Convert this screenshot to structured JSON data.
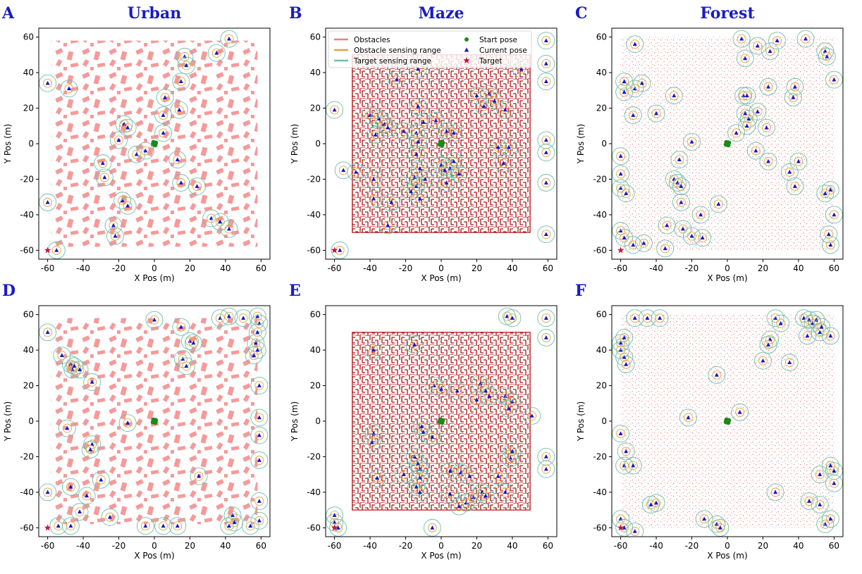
{
  "figure": {
    "legend": {
      "placement": "top",
      "entries": [
        {
          "label": "Obstacles",
          "kind": "line",
          "color": "#f08080"
        },
        {
          "label": "Obstacle sensing range",
          "kind": "line",
          "color": "#d9a545"
        },
        {
          "label": "Target sensing range",
          "kind": "line",
          "color": "#6fbfae"
        },
        {
          "label": "Start pose",
          "kind": "dot",
          "color": "#1a8a1a"
        },
        {
          "label": "Current pose",
          "kind": "triangle",
          "color": "#1515c8"
        },
        {
          "label": "Target",
          "kind": "star",
          "color": "#c8143c"
        }
      ]
    },
    "colors": {
      "obstacle_urban": "#f59a9a",
      "obstacle_maze": "#b01010",
      "obstacle_forest": "#f08a8a",
      "target_ring": "#6fbfae",
      "obstacle_ring": "#d9a545",
      "agent": "#1515c8",
      "start": "#1a8a1a",
      "target": "#c8143c",
      "title_color": "#1a1ac8"
    }
  },
  "chart_data": [
    {
      "letter": "A",
      "title": "Urban",
      "type": "scatter",
      "environment": "urban",
      "xlabel": "X Pos (m)",
      "ylabel": "Y Pos (m)",
      "xlim": [
        -65,
        65
      ],
      "ylim": [
        -65,
        65
      ],
      "xticks": [
        -60,
        -40,
        -20,
        0,
        20,
        40,
        60
      ],
      "yticks": [
        -60,
        -40,
        -20,
        0,
        20,
        40,
        60
      ],
      "target": [
        -60,
        -60
      ],
      "start": [
        0,
        0
      ],
      "agents": [
        [
          -60,
          34
        ],
        [
          -48,
          31
        ],
        [
          -60,
          -33
        ],
        [
          -55,
          -60
        ],
        [
          42,
          59
        ],
        [
          17,
          49
        ],
        [
          18,
          44
        ],
        [
          35,
          51
        ],
        [
          15,
          35
        ],
        [
          6,
          26
        ],
        [
          5,
          16
        ],
        [
          14,
          19
        ],
        [
          5,
          6
        ],
        [
          -17,
          11
        ],
        [
          -15,
          9
        ],
        [
          -20,
          2
        ],
        [
          -10,
          -6
        ],
        [
          -5,
          -4
        ],
        [
          13,
          -9
        ],
        [
          -29,
          -11
        ],
        [
          -28,
          -19
        ],
        [
          -18,
          -32
        ],
        [
          -15,
          -35
        ],
        [
          15,
          -22
        ],
        [
          24,
          -24
        ],
        [
          -23,
          -46
        ],
        [
          -22,
          -52
        ],
        [
          32,
          -42
        ],
        [
          37,
          -44
        ],
        [
          42,
          -48
        ]
      ]
    },
    {
      "letter": "B",
      "title": "Maze",
      "type": "scatter",
      "environment": "maze",
      "xlabel": "X Pos (m)",
      "ylabel": "Y Pos (m)",
      "xlim": [
        -65,
        65
      ],
      "ylim": [
        -65,
        65
      ],
      "xticks": [
        -60,
        -40,
        -20,
        0,
        20,
        40,
        60
      ],
      "yticks": [
        -60,
        -40,
        -20,
        0,
        20,
        40,
        60
      ],
      "legend_shown": true,
      "target": [
        -60,
        -60
      ],
      "start": [
        0,
        0
      ],
      "agents": [
        [
          -60,
          19
        ],
        [
          -55,
          -15
        ],
        [
          -57,
          -60
        ],
        [
          59,
          58
        ],
        [
          59,
          45
        ],
        [
          59,
          35
        ],
        [
          59,
          2
        ],
        [
          59,
          -5
        ],
        [
          59,
          -22
        ],
        [
          59,
          -51
        ],
        [
          -40,
          16
        ],
        [
          -35,
          14
        ],
        [
          -32,
          11
        ],
        [
          -30,
          9
        ],
        [
          -37,
          5
        ],
        [
          -13,
          42
        ],
        [
          -25,
          36
        ],
        [
          -13,
          21
        ],
        [
          -21,
          7
        ],
        [
          -10,
          12
        ],
        [
          -14,
          6
        ],
        [
          -13,
          1
        ],
        [
          -14,
          -6
        ],
        [
          -3,
          13
        ],
        [
          3,
          7
        ],
        [
          7,
          6
        ],
        [
          -12,
          -14
        ],
        [
          -15,
          -19
        ],
        [
          -14,
          -24
        ],
        [
          -17,
          -27
        ],
        [
          -12,
          -31
        ],
        [
          -9,
          -20
        ],
        [
          0,
          -12
        ],
        [
          2,
          -15
        ],
        [
          5,
          -14
        ],
        [
          7,
          -10
        ],
        [
          3,
          -22
        ],
        [
          10,
          -17
        ],
        [
          -48,
          -16
        ],
        [
          -38,
          -20
        ],
        [
          -38,
          -31
        ],
        [
          -30,
          -46
        ],
        [
          -28,
          -33
        ],
        [
          20,
          27
        ],
        [
          27,
          28
        ],
        [
          24,
          21
        ],
        [
          30,
          24
        ],
        [
          36,
          19
        ],
        [
          35,
          -11
        ],
        [
          32,
          -2
        ],
        [
          38,
          -2
        ],
        [
          45,
          42
        ]
      ]
    },
    {
      "letter": "C",
      "title": "Forest",
      "type": "scatter",
      "environment": "forest",
      "xlabel": "X Pos (m)",
      "ylabel": "Y Pos (m)",
      "xlim": [
        -65,
        65
      ],
      "ylim": [
        -65,
        65
      ],
      "xticks": [
        -60,
        -40,
        -20,
        0,
        20,
        40,
        60
      ],
      "yticks": [
        -60,
        -40,
        -20,
        0,
        20,
        40,
        60
      ],
      "target": [
        -60,
        -60
      ],
      "start": [
        0,
        0
      ],
      "agents": [
        [
          -52,
          56
        ],
        [
          -58,
          35
        ],
        [
          -58,
          29
        ],
        [
          -52,
          31
        ],
        [
          -48,
          34
        ],
        [
          -53,
          16
        ],
        [
          -40,
          17
        ],
        [
          -30,
          27
        ],
        [
          -60,
          -7
        ],
        [
          -60,
          -17
        ],
        [
          -60,
          -25
        ],
        [
          -57,
          -28
        ],
        [
          -60,
          -49
        ],
        [
          -58,
          -53
        ],
        [
          -53,
          -57
        ],
        [
          -47,
          -56
        ],
        [
          -20,
          1
        ],
        [
          -30,
          -20
        ],
        [
          -28,
          -22
        ],
        [
          -26,
          -24
        ],
        [
          -26,
          -33
        ],
        [
          -34,
          -46
        ],
        [
          -25,
          -48
        ],
        [
          -20,
          -52
        ],
        [
          -14,
          -53
        ],
        [
          -15,
          -40
        ],
        [
          -27,
          -9
        ],
        [
          -5,
          -34
        ],
        [
          -35,
          -59
        ],
        [
          5,
          6
        ],
        [
          9,
          27
        ],
        [
          11,
          27
        ],
        [
          10,
          17
        ],
        [
          12,
          14
        ],
        [
          11,
          10
        ],
        [
          17,
          18
        ],
        [
          22,
          9
        ],
        [
          8,
          59
        ],
        [
          10,
          48
        ],
        [
          17,
          55
        ],
        [
          24,
          52
        ],
        [
          28,
          58
        ],
        [
          44,
          59
        ],
        [
          23,
          32
        ],
        [
          16,
          -4
        ],
        [
          23,
          -10
        ],
        [
          35,
          -16
        ],
        [
          38,
          -24
        ],
        [
          40,
          -10
        ],
        [
          38,
          32
        ],
        [
          37,
          26
        ],
        [
          55,
          52
        ],
        [
          56,
          49
        ],
        [
          60,
          36
        ],
        [
          58,
          -26
        ],
        [
          55,
          -28
        ],
        [
          60,
          -40
        ],
        [
          57,
          -51
        ],
        [
          58,
          -57
        ]
      ]
    },
    {
      "letter": "D",
      "type": "scatter",
      "environment": "urban",
      "xlabel": "X Pos (m)",
      "ylabel": "Y Pos (m)",
      "xlim": [
        -65,
        65
      ],
      "ylim": [
        -65,
        65
      ],
      "xticks": [
        -60,
        -40,
        -20,
        0,
        20,
        40,
        60
      ],
      "yticks": [
        -60,
        -40,
        -20,
        0,
        20,
        40,
        60
      ],
      "target": [
        -60,
        -60
      ],
      "start": [
        0,
        0
      ],
      "agents": [
        [
          -60,
          50
        ],
        [
          -52,
          37
        ],
        [
          -47,
          32
        ],
        [
          -46,
          29
        ],
        [
          -45,
          31
        ],
        [
          -42,
          29
        ],
        [
          -35,
          22
        ],
        [
          -49,
          -4
        ],
        [
          -35,
          -13
        ],
        [
          -36,
          -16
        ],
        [
          -47,
          -37
        ],
        [
          -60,
          -40
        ],
        [
          -54,
          -59
        ],
        [
          -47,
          -59
        ],
        [
          -42,
          -51
        ],
        [
          -38,
          -42
        ],
        [
          -30,
          -33
        ],
        [
          -25,
          -54
        ],
        [
          -15,
          -1
        ],
        [
          0,
          57
        ],
        [
          15,
          53
        ],
        [
          16,
          35
        ],
        [
          18,
          31
        ],
        [
          20,
          45
        ],
        [
          22,
          44
        ],
        [
          25,
          -31
        ],
        [
          13,
          -59
        ],
        [
          5,
          -59
        ],
        [
          -5,
          -59
        ],
        [
          37,
          58
        ],
        [
          42,
          59
        ],
        [
          50,
          58
        ],
        [
          58,
          59
        ],
        [
          59,
          55
        ],
        [
          58,
          50
        ],
        [
          57,
          44
        ],
        [
          58,
          40
        ],
        [
          56,
          37
        ],
        [
          59,
          20
        ],
        [
          59,
          2
        ],
        [
          59,
          -8
        ],
        [
          59,
          -22
        ],
        [
          59,
          -45
        ],
        [
          44,
          -53
        ],
        [
          45,
          -57
        ],
        [
          59,
          -56
        ],
        [
          54,
          -59
        ],
        [
          42,
          -59
        ]
      ]
    },
    {
      "letter": "E",
      "type": "scatter",
      "environment": "maze",
      "xlabel": "X Pos (m)",
      "ylabel": "Y Pos (m)",
      "xlim": [
        -65,
        65
      ],
      "ylim": [
        -65,
        65
      ],
      "xticks": [
        -60,
        -40,
        -20,
        0,
        20,
        40,
        60
      ],
      "yticks": [
        -60,
        -40,
        -20,
        0,
        20,
        40,
        60
      ],
      "target": [
        -60,
        -60
      ],
      "start": [
        0,
        0
      ],
      "agents": [
        [
          -60,
          -57
        ],
        [
          -58,
          -60
        ],
        [
          -60,
          -53
        ],
        [
          -38,
          40
        ],
        [
          -15,
          43
        ],
        [
          -4,
          20
        ],
        [
          0,
          18
        ],
        [
          9,
          17
        ],
        [
          22,
          21
        ],
        [
          25,
          17
        ],
        [
          27,
          14
        ],
        [
          20,
          12
        ],
        [
          36,
          14
        ],
        [
          40,
          11
        ],
        [
          38,
          7
        ],
        [
          51,
          3
        ],
        [
          37,
          59
        ],
        [
          40,
          58
        ],
        [
          59,
          58
        ],
        [
          59,
          47
        ],
        [
          -38,
          -7
        ],
        [
          -39,
          -12
        ],
        [
          -36,
          -32
        ],
        [
          -21,
          -30
        ],
        [
          -15,
          -20
        ],
        [
          -13,
          -24
        ],
        [
          -12,
          -27
        ],
        [
          -12,
          -32
        ],
        [
          -14,
          -37
        ],
        [
          -12,
          -40
        ],
        [
          -10,
          -6
        ],
        [
          -11,
          -3
        ],
        [
          -5,
          -9
        ],
        [
          5,
          -28
        ],
        [
          11,
          -29
        ],
        [
          16,
          -31
        ],
        [
          23,
          -40
        ],
        [
          25,
          -42
        ],
        [
          18,
          -43
        ],
        [
          14,
          -46
        ],
        [
          5,
          -41
        ],
        [
          10,
          -48
        ],
        [
          32,
          -31
        ],
        [
          36,
          -40
        ],
        [
          39,
          -21
        ],
        [
          40,
          -17
        ],
        [
          59,
          -20
        ],
        [
          59,
          -27
        ],
        [
          -5,
          -60
        ]
      ]
    },
    {
      "letter": "F",
      "type": "scatter",
      "environment": "forest",
      "xlabel": "X Pos (m)",
      "ylabel": "Y Pos (m)",
      "xlim": [
        -65,
        65
      ],
      "ylim": [
        -65,
        65
      ],
      "xticks": [
        -60,
        -40,
        -20,
        0,
        20,
        40,
        60
      ],
      "yticks": [
        -60,
        -40,
        -20,
        0,
        20,
        40,
        60
      ],
      "target": [
        -60,
        -60
      ],
      "start": [
        0,
        0
      ],
      "agents": [
        [
          -60,
          44
        ],
        [
          -58,
          47
        ],
        [
          -60,
          40
        ],
        [
          -58,
          36
        ],
        [
          -57,
          32
        ],
        [
          -52,
          58
        ],
        [
          -45,
          58
        ],
        [
          -38,
          58
        ],
        [
          -60,
          -7
        ],
        [
          -58,
          -25
        ],
        [
          -53,
          -25
        ],
        [
          -57,
          -17
        ],
        [
          -60,
          -55
        ],
        [
          -58,
          -60
        ],
        [
          -52,
          -62
        ],
        [
          -43,
          -47
        ],
        [
          -40,
          -46
        ],
        [
          -22,
          2
        ],
        [
          -6,
          26
        ],
        [
          -13,
          -55
        ],
        [
          -6,
          -58
        ],
        [
          -4,
          -60
        ],
        [
          7,
          5
        ],
        [
          27,
          58
        ],
        [
          30,
          55
        ],
        [
          24,
          46
        ],
        [
          23,
          43
        ],
        [
          20,
          34
        ],
        [
          27,
          -40
        ],
        [
          35,
          33
        ],
        [
          43,
          58
        ],
        [
          46,
          57
        ],
        [
          48,
          55
        ],
        [
          45,
          48
        ],
        [
          50,
          57
        ],
        [
          52,
          50
        ],
        [
          53,
          53
        ],
        [
          58,
          48
        ],
        [
          58,
          -25
        ],
        [
          60,
          -28
        ],
        [
          52,
          -30
        ],
        [
          60,
          -35
        ],
        [
          46,
          -45
        ],
        [
          52,
          -47
        ],
        [
          55,
          -58
        ],
        [
          58,
          -55
        ]
      ]
    }
  ]
}
